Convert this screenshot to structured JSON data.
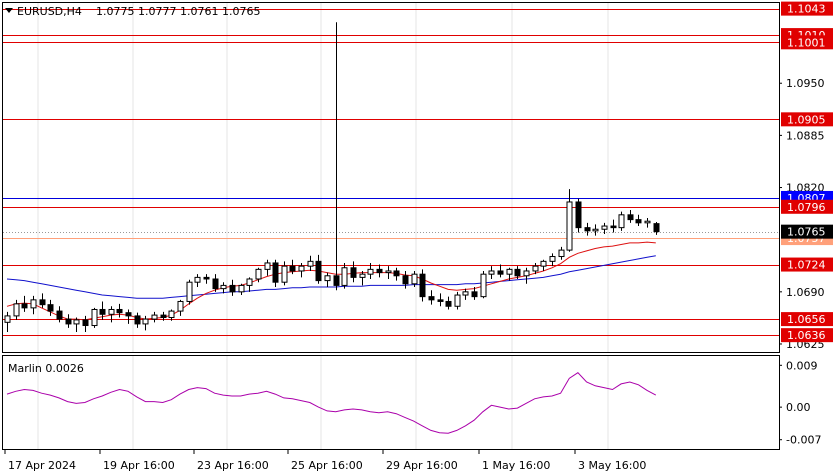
{
  "header": {
    "symbol": "EURUSD,H4",
    "ohlc": "1.0775 1.0777 1.0761 1.0765",
    "menu_icon": "triangle-down-icon"
  },
  "colors": {
    "level_red": "#e00000",
    "level_blue": "#0000dd",
    "level_salmon": "#ffa07a",
    "ma_red": "#dd1111",
    "ma_blue": "#1111cc",
    "osc": "#aa00aa",
    "tag_red": "#e00000",
    "tag_blue": "#0000ff",
    "tag_salmon": "#ffa07a",
    "grid": "#e6e6e6"
  },
  "levels": [
    {
      "value": 1.1043,
      "label": "1.1043",
      "color": "red"
    },
    {
      "value": 1.101,
      "label": "1.1010",
      "color": "red"
    },
    {
      "value": 1.1001,
      "label": "1.1001",
      "color": "red"
    },
    {
      "value": 1.0905,
      "label": "1.0905",
      "color": "red"
    },
    {
      "value": 1.0807,
      "label": "1.0807",
      "color": "blue"
    },
    {
      "value": 1.0796,
      "label": "1.0796",
      "color": "red"
    },
    {
      "value": 1.0757,
      "label": "1.0757",
      "color": "salmon"
    },
    {
      "value": 1.0724,
      "label": "1.0724",
      "color": "red"
    },
    {
      "value": 1.0656,
      "label": "1.0656",
      "color": "red"
    },
    {
      "value": 1.0636,
      "label": "1.0636",
      "color": "red"
    }
  ],
  "price_axis_labels": [
    {
      "value": 1.095,
      "label": "1.0950"
    },
    {
      "value": 1.0885,
      "label": "1.0885"
    },
    {
      "value": 1.082,
      "label": "1.0820"
    },
    {
      "value": 1.069,
      "label": "1.0690"
    },
    {
      "value": 1.0625,
      "label": "1.0625"
    }
  ],
  "current_price": {
    "value": 1.0765,
    "label": "1.0765"
  },
  "time_labels": [
    "17 Apr 2024",
    "19 Apr 16:00",
    "23 Apr 16:00",
    "25 Apr 16:00",
    "29 Apr 16:00",
    "1 May 16:00",
    "3 May 16:00"
  ],
  "oscillator": {
    "title": "Marlin 0.0026",
    "axis_labels": [
      "0.009",
      "0.00",
      "-0.007"
    ],
    "axis_values": [
      0.009,
      0,
      -0.007
    ],
    "ylim": [
      -0.009,
      0.011
    ]
  },
  "chart_data": {
    "type": "candlestick",
    "ylim": [
      1.0615,
      1.105
    ],
    "candles": [
      [
        1.0652,
        1.0665,
        1.064,
        1.066
      ],
      [
        1.066,
        1.068,
        1.0655,
        1.0675
      ],
      [
        1.0675,
        1.0685,
        1.0665,
        1.067
      ],
      [
        1.067,
        1.0685,
        1.0662,
        1.068
      ],
      [
        1.068,
        1.0688,
        1.067,
        1.0674
      ],
      [
        1.0674,
        1.068,
        1.066,
        1.0666
      ],
      [
        1.0666,
        1.0672,
        1.0652,
        1.0656
      ],
      [
        1.0656,
        1.0662,
        1.0645,
        1.065
      ],
      [
        1.065,
        1.0658,
        1.064,
        1.0655
      ],
      [
        1.0655,
        1.066,
        1.064,
        1.0648
      ],
      [
        1.0648,
        1.067,
        1.0645,
        1.0668
      ],
      [
        1.0668,
        1.0678,
        1.0655,
        1.0662
      ],
      [
        1.0662,
        1.0672,
        1.0652,
        1.0668
      ],
      [
        1.0668,
        1.0675,
        1.0658,
        1.0664
      ],
      [
        1.0664,
        1.0668,
        1.065,
        1.066
      ],
      [
        1.066,
        1.0664,
        1.0645,
        1.065
      ],
      [
        1.065,
        1.066,
        1.0642,
        1.0656
      ],
      [
        1.0656,
        1.0665,
        1.0652,
        1.0661
      ],
      [
        1.0661,
        1.0665,
        1.0654,
        1.0658
      ],
      [
        1.0658,
        1.0668,
        1.0654,
        1.0666
      ],
      [
        1.0666,
        1.068,
        1.066,
        1.0678
      ],
      [
        1.0678,
        1.0705,
        1.0674,
        1.0702
      ],
      [
        1.0702,
        1.0712,
        1.0696,
        1.0708
      ],
      [
        1.0708,
        1.0712,
        1.07,
        1.0706
      ],
      [
        1.0706,
        1.0712,
        1.069,
        1.0694
      ],
      [
        1.0694,
        1.0702,
        1.0688,
        1.0698
      ],
      [
        1.0698,
        1.0705,
        1.0685,
        1.069
      ],
      [
        1.069,
        1.07,
        1.0686,
        1.0698
      ],
      [
        1.0698,
        1.0708,
        1.069,
        1.0706
      ],
      [
        1.0706,
        1.072,
        1.0702,
        1.0718
      ],
      [
        1.0718,
        1.073,
        1.071,
        1.0726
      ],
      [
        1.0726,
        1.073,
        1.0696,
        1.0702
      ],
      [
        1.0702,
        1.0728,
        1.0698,
        1.0722
      ],
      [
        1.0722,
        1.073,
        1.0712,
        1.0716
      ],
      [
        1.0716,
        1.0726,
        1.0708,
        1.0722
      ],
      [
        1.0722,
        1.0735,
        1.0716,
        1.0728
      ],
      [
        1.0728,
        1.0736,
        1.07,
        1.0704
      ],
      [
        1.0704,
        1.0714,
        1.0696,
        1.071
      ],
      [
        1.071,
        1.1026,
        1.0692,
        1.0698
      ],
      [
        1.0698,
        1.0726,
        1.0694,
        1.072
      ],
      [
        1.072,
        1.0728,
        1.0702,
        1.0708
      ],
      [
        1.0708,
        1.0716,
        1.0698,
        1.0712
      ],
      [
        1.0712,
        1.0726,
        1.0706,
        1.0718
      ],
      [
        1.0718,
        1.0724,
        1.0708,
        1.0714
      ],
      [
        1.0714,
        1.0722,
        1.0706,
        1.0716
      ],
      [
        1.0716,
        1.072,
        1.0704,
        1.071
      ],
      [
        1.071,
        1.0716,
        1.0694,
        1.07
      ],
      [
        1.07,
        1.0716,
        1.0696,
        1.0712
      ],
      [
        1.0712,
        1.0718,
        1.0678,
        1.0684
      ],
      [
        1.0684,
        1.0692,
        1.0674,
        1.068
      ],
      [
        1.068,
        1.0688,
        1.0672,
        1.0678
      ],
      [
        1.0678,
        1.0684,
        1.0668,
        1.0672
      ],
      [
        1.0672,
        1.069,
        1.0668,
        1.0686
      ],
      [
        1.0686,
        1.0694,
        1.068,
        1.069
      ],
      [
        1.069,
        1.0696,
        1.068,
        1.0684
      ],
      [
        1.0684,
        1.0716,
        1.0682,
        1.0712
      ],
      [
        1.0712,
        1.0722,
        1.0706,
        1.0716
      ],
      [
        1.0716,
        1.0724,
        1.0708,
        1.0712
      ],
      [
        1.0712,
        1.072,
        1.0704,
        1.0718
      ],
      [
        1.0718,
        1.0722,
        1.0706,
        1.071
      ],
      [
        1.071,
        1.072,
        1.07,
        1.0716
      ],
      [
        1.0716,
        1.0726,
        1.0712,
        1.0722
      ],
      [
        1.0722,
        1.073,
        1.0716,
        1.0728
      ],
      [
        1.0728,
        1.0738,
        1.0722,
        1.0734
      ],
      [
        1.0734,
        1.0746,
        1.073,
        1.0742
      ],
      [
        1.0742,
        1.0818,
        1.074,
        1.0802
      ],
      [
        1.0802,
        1.0806,
        1.0764,
        1.077
      ],
      [
        1.077,
        1.0776,
        1.076,
        1.0766
      ],
      [
        1.0766,
        1.0774,
        1.076,
        1.0768
      ],
      [
        1.0768,
        1.0776,
        1.0762,
        1.0772
      ],
      [
        1.0772,
        1.078,
        1.0764,
        1.077
      ],
      [
        1.077,
        1.079,
        1.0766,
        1.0786
      ],
      [
        1.0786,
        1.0792,
        1.0776,
        1.078
      ],
      [
        1.078,
        1.0786,
        1.0772,
        1.0776
      ],
      [
        1.0776,
        1.0782,
        1.077,
        1.0778
      ],
      [
        1.0775,
        1.0777,
        1.0761,
        1.0765
      ]
    ],
    "ma_red": [
      1.0672,
      1.0675,
      1.0676,
      1.0675,
      1.067,
      1.0665,
      1.066,
      1.0656,
      1.0656,
      1.0655,
      1.0657,
      1.0659,
      1.0661,
      1.0662,
      1.0661,
      1.0658,
      1.0656,
      1.0657,
      1.0658,
      1.0661,
      1.0667,
      1.0675,
      1.0682,
      1.0688,
      1.0692,
      1.0695,
      1.0697,
      1.0698,
      1.0701,
      1.0705,
      1.0709,
      1.0712,
      1.0714,
      1.0715,
      1.0716,
      1.0717,
      1.0716,
      1.0714,
      1.0712,
      1.0712,
      1.0713,
      1.0714,
      1.0714,
      1.0714,
      1.0714,
      1.0713,
      1.0711,
      1.071,
      1.0706,
      1.0701,
      1.0697,
      1.0693,
      1.0692,
      1.0693,
      1.0694,
      1.0697,
      1.07,
      1.0703,
      1.0706,
      1.0708,
      1.071,
      1.0713,
      1.0716,
      1.072,
      1.0725,
      1.0733,
      1.0738,
      1.0741,
      1.0744,
      1.0746,
      1.0747,
      1.0749,
      1.0751,
      1.0751,
      1.0752,
      1.0751
    ],
    "ma_blue": [
      1.0706,
      1.0705,
      1.0704,
      1.0702,
      1.07,
      1.0698,
      1.0696,
      1.0694,
      1.0692,
      1.069,
      1.0688,
      1.0686,
      1.0685,
      1.0684,
      1.0683,
      1.0682,
      1.0682,
      1.0682,
      1.0682,
      1.0683,
      1.0684,
      1.0685,
      1.0686,
      1.0687,
      1.0688,
      1.0689,
      1.069,
      1.069,
      1.0691,
      1.0692,
      1.0693,
      1.0693,
      1.0694,
      1.0695,
      1.0695,
      1.0696,
      1.0696,
      1.0696,
      1.0696,
      1.0697,
      1.0697,
      1.0697,
      1.0698,
      1.0698,
      1.0698,
      1.0698,
      1.0698,
      1.0699,
      1.0699,
      1.0699,
      1.0699,
      1.0699,
      1.0699,
      1.07,
      1.07,
      1.0701,
      1.0702,
      1.0703,
      1.0704,
      1.0705,
      1.0706,
      1.0707,
      1.0708,
      1.071,
      1.0712,
      1.0715,
      1.0717,
      1.0719,
      1.0721,
      1.0723,
      1.0725,
      1.0727,
      1.0729,
      1.0731,
      1.0733,
      1.0735
    ],
    "oscillator": [
      0.0028,
      0.0034,
      0.0038,
      0.0036,
      0.003,
      0.0026,
      0.002,
      0.0012,
      0.0008,
      0.001,
      0.0018,
      0.0024,
      0.0032,
      0.0038,
      0.0034,
      0.0022,
      0.0012,
      0.0012,
      0.001,
      0.0016,
      0.0028,
      0.0038,
      0.0042,
      0.004,
      0.003,
      0.0026,
      0.0024,
      0.0024,
      0.0028,
      0.003,
      0.0034,
      0.0028,
      0.002,
      0.0018,
      0.0014,
      0.001,
      0.0,
      -0.0008,
      -0.001,
      -0.0006,
      -0.0004,
      -0.0006,
      -0.001,
      -0.0012,
      -0.001,
      -0.0014,
      -0.0022,
      -0.003,
      -0.004,
      -0.005,
      -0.0055,
      -0.0056,
      -0.005,
      -0.004,
      -0.0028,
      -0.001,
      0.0004,
      0.0,
      -0.0004,
      -0.0002,
      0.0008,
      0.0018,
      0.0022,
      0.0024,
      0.003,
      0.0062,
      0.0074,
      0.0054,
      0.0046,
      0.0042,
      0.0038,
      0.005,
      0.0054,
      0.0048,
      0.0036,
      0.0026
    ]
  }
}
